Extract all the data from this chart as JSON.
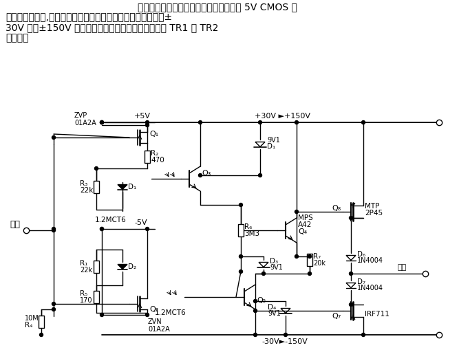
{
  "bg_color": "#ffffff",
  "line_color": "#000000",
  "text_color": "#000000",
  "title_lines": [
    "所示为一光电隔离高压电源电路。电路从 5V CMOS 逻",
    "辑电路得到输入,输出同样极性的高压。该电路的供电电源可从±",
    "30V 变到±150V 而不必改变电路元件。输入电压加到 TR1 和 TR2",
    "的门极。"
  ]
}
